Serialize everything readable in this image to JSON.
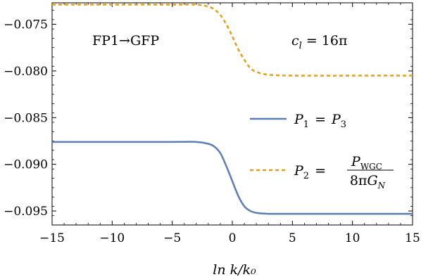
{
  "chart_data": {
    "type": "line",
    "title": "",
    "xlabel": "ln k/k₀",
    "ylabel": "",
    "xlim": [
      -15,
      15
    ],
    "ylim": [
      -0.0965,
      -0.0727
    ],
    "x_ticks": [
      -15,
      -10,
      -5,
      0,
      5,
      10,
      15
    ],
    "y_ticks": [
      -0.075,
      -0.08,
      -0.085,
      -0.09,
      -0.095
    ],
    "x_tick_labels": [
      "−15",
      "−10",
      "−5",
      "0",
      "5",
      "10",
      "15"
    ],
    "y_tick_labels": [
      "−0.075",
      "−0.080",
      "−0.085",
      "−0.090",
      "−0.095"
    ],
    "grid": false,
    "legend_position": "right",
    "annotations": {
      "left_label": "FP1→GFP",
      "right_label_var": "c",
      "right_label_sub": "l",
      "right_label_value": "= 16π"
    },
    "series": [
      {
        "name": "P₁ = P₃",
        "legend": {
          "lhs": "P",
          "lhs_sub": "1",
          "eq": "=",
          "rhs": "P",
          "rhs_sub": "3"
        },
        "color": "#5b7fb4",
        "style": "solid",
        "x": [
          -15,
          -10,
          -5,
          -3,
          -2,
          -1.5,
          -1,
          -0.5,
          0,
          0.5,
          1,
          1.5,
          2,
          3,
          5,
          10,
          15
        ],
        "y": [
          -0.0876,
          -0.0876,
          -0.0876,
          -0.0876,
          -0.0878,
          -0.0881,
          -0.0888,
          -0.0902,
          -0.0918,
          -0.0934,
          -0.0945,
          -0.095,
          -0.0952,
          -0.0953,
          -0.0953,
          -0.0953,
          -0.0953
        ]
      },
      {
        "name": "P₂ = P_WGC / 8πG_N",
        "legend": {
          "lhs": "P",
          "lhs_sub": "2",
          "eq": "=",
          "num": "P",
          "num_sub": "WGC",
          "den_a": "8π",
          "den_b": "G",
          "den_sub": "N"
        },
        "color": "#e69f14",
        "style": "dashed",
        "x": [
          -15,
          -10,
          -5,
          -3,
          -2,
          -1.5,
          -1,
          -0.5,
          0,
          0.5,
          1,
          1.5,
          2,
          3,
          5,
          10,
          15
        ],
        "y": [
          -0.0729,
          -0.0729,
          -0.0729,
          -0.0729,
          -0.0731,
          -0.0734,
          -0.074,
          -0.075,
          -0.0763,
          -0.0777,
          -0.0788,
          -0.0797,
          -0.0801,
          -0.0804,
          -0.0805,
          -0.0805,
          -0.0805
        ]
      }
    ]
  }
}
